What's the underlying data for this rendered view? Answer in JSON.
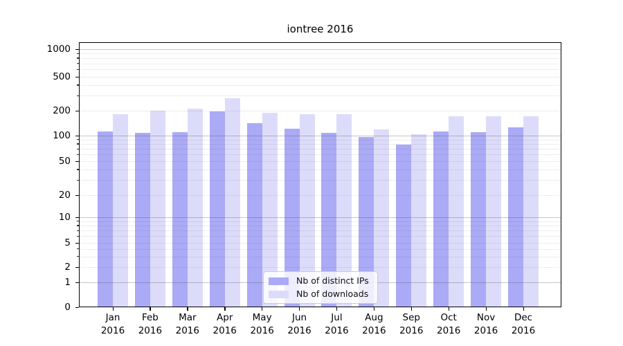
{
  "figure": {
    "title": "iontree 2016"
  },
  "legend": {
    "position": "lower center",
    "items": [
      {
        "label": "Nb of distinct IPs",
        "color": "#aaaaf6"
      },
      {
        "label": "Nb of downloads",
        "color": "#dcdcfa"
      }
    ]
  },
  "chart_data": {
    "type": "bar",
    "title": "iontree 2016",
    "x_categories": [
      "Jan",
      "Feb",
      "Mar",
      "Apr",
      "May",
      "Jun",
      "Jul",
      "Aug",
      "Sep",
      "Oct",
      "Nov",
      "Dec"
    ],
    "x_year": "2016",
    "series": [
      {
        "name": "Nb of distinct IPs",
        "color": "#aaaaf6",
        "values": [
          113,
          109,
          110,
          195,
          142,
          122,
          108,
          97,
          78,
          113,
          111,
          126
        ]
      },
      {
        "name": "Nb of downloads",
        "color": "#dcdcfa",
        "values": [
          180,
          200,
          210,
          280,
          190,
          180,
          180,
          120,
          103,
          172,
          172,
          172
        ]
      }
    ],
    "xlabel": "",
    "ylabel": "",
    "yscale": "symlog",
    "yticks": [
      0,
      1,
      2,
      5,
      10,
      20,
      50,
      100,
      200,
      500,
      1000
    ],
    "ylim": [
      0,
      1250
    ],
    "grid": true,
    "legend_position": "lower center"
  }
}
